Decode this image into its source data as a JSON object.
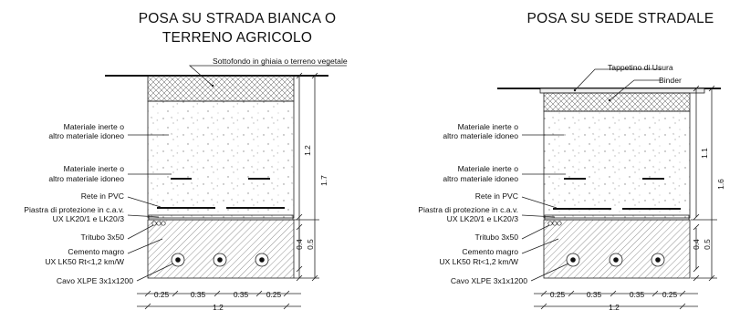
{
  "left": {
    "title_line1": "POSA SU STRADA BIANCA O",
    "title_line2": "TERRENO AGRICOLO",
    "label_surface": "Sottofondo in ghiaia o terreno vegetale",
    "label_inert_1_line1": "Materiale inerte o",
    "label_inert_1_line2": "altro materiale idoneo",
    "label_inert_2_line1": "Materiale inerte o",
    "label_inert_2_line2": "altro materiale idoneo",
    "label_rete": "Rete in PVC",
    "label_piastra_line1": "Piastra di protezione in c.a.v.",
    "label_piastra_line2": "UX LK20/1 e LK20/3",
    "label_tritubo": "Tritubo 3x50",
    "label_cemento_line1": "Cemento magro",
    "label_cemento_line2": "UX LK50 Rt<1,2 km/W",
    "label_cavo": "Cavo XLPE 3x1x1200",
    "dim_upper": "1.2",
    "dim_total": "1.7",
    "dim_small_a": "0.4",
    "dim_small_b": "0.5",
    "dim_w1": "0.25",
    "dim_w2": "0.35",
    "dim_w3": "0.35",
    "dim_w4": "0.25",
    "dim_width_total": "1.2"
  },
  "right": {
    "title": "POSA SU SEDE STRADALE",
    "label_tappetino": "Tappetino di Usura",
    "label_binder": "Binder",
    "label_inert_1_line1": "Materiale inerte o",
    "label_inert_1_line2": "altro materiale idoneo",
    "label_inert_2_line1": "Materiale inerte o",
    "label_inert_2_line2": "altro materiale idoneo",
    "label_rete": "Rete in PVC",
    "label_piastra_line1": "Piastra di protezione in c.a.v.",
    "label_piastra_line2": "UX LK20/1 e LK20/3",
    "label_tritubo": "Tritubo 3x50",
    "label_cemento_line1": "Cemento magro",
    "label_cemento_line2": "UX LK50 Rt<1,2 km/W",
    "label_cavo": "Cavo XLPE 3x1x1200",
    "dim_upper": "1.1",
    "dim_total": "1.6",
    "dim_small_a": "0.4",
    "dim_small_b": "0.5",
    "dim_w1": "0.25",
    "dim_w2": "0.35",
    "dim_w3": "0.35",
    "dim_w4": "0.25",
    "dim_width_total": "1.2"
  }
}
